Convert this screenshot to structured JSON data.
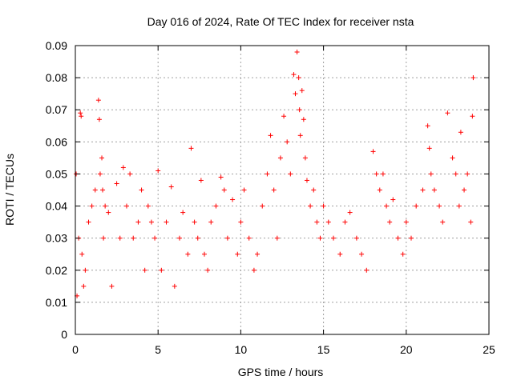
{
  "chart_data": {
    "type": "scatter",
    "title": "Day 016 of 2024, Rate Of TEC Index for receiver nsta",
    "xlabel": "GPS time / hours",
    "ylabel": "ROTI / TECUs",
    "xlim": [
      0,
      25
    ],
    "ylim": [
      0,
      0.09
    ],
    "x_ticks": [
      0,
      5,
      10,
      15,
      20,
      25
    ],
    "x_tick_labels": [
      "0",
      "5",
      "10",
      "15",
      "20",
      "25"
    ],
    "y_ticks": [
      0,
      0.01,
      0.02,
      0.03,
      0.04,
      0.05,
      0.06,
      0.07,
      0.08,
      0.09
    ],
    "y_tick_labels": [
      "0",
      "0.01",
      "0.02",
      "0.03",
      "0.04",
      "0.05",
      "0.06",
      "0.07",
      "0.08",
      "0.09"
    ],
    "grid": true,
    "marker": "+",
    "color": "#ff0000",
    "series": [
      {
        "name": "ROTI",
        "x": [
          0.05,
          0.1,
          0.2,
          0.3,
          0.35,
          0.4,
          0.5,
          0.6,
          0.8,
          1.0,
          1.2,
          1.4,
          1.45,
          1.5,
          1.6,
          1.65,
          1.7,
          1.8,
          2.0,
          2.2,
          2.5,
          2.7,
          2.9,
          3.1,
          3.3,
          3.5,
          3.8,
          4.0,
          4.2,
          4.4,
          4.6,
          4.8,
          5.0,
          5.2,
          5.5,
          5.8,
          6.0,
          6.3,
          6.5,
          6.8,
          7.0,
          7.2,
          7.4,
          7.6,
          7.8,
          8.0,
          8.2,
          8.5,
          8.8,
          9.0,
          9.2,
          9.5,
          9.8,
          10.0,
          10.2,
          10.5,
          10.8,
          11.0,
          11.3,
          11.6,
          11.8,
          12.0,
          12.2,
          12.4,
          12.6,
          12.8,
          13.0,
          13.2,
          13.3,
          13.4,
          13.5,
          13.55,
          13.6,
          13.7,
          13.8,
          13.9,
          14.0,
          14.2,
          14.4,
          14.6,
          14.8,
          15.0,
          15.3,
          15.6,
          16.0,
          16.3,
          16.6,
          17.0,
          17.3,
          17.6,
          18.0,
          18.2,
          18.4,
          18.6,
          18.8,
          19.0,
          19.2,
          19.5,
          19.8,
          20.0,
          20.3,
          20.6,
          21.0,
          21.3,
          21.4,
          21.5,
          21.7,
          22.0,
          22.2,
          22.5,
          22.8,
          23.0,
          23.2,
          23.3,
          23.5,
          23.7,
          23.9,
          24.0,
          24.05
        ],
        "y": [
          0.05,
          0.012,
          0.03,
          0.069,
          0.068,
          0.025,
          0.015,
          0.02,
          0.035,
          0.04,
          0.045,
          0.073,
          0.067,
          0.05,
          0.055,
          0.045,
          0.03,
          0.04,
          0.038,
          0.015,
          0.047,
          0.03,
          0.052,
          0.04,
          0.05,
          0.03,
          0.035,
          0.045,
          0.02,
          0.04,
          0.035,
          0.03,
          0.051,
          0.02,
          0.035,
          0.046,
          0.015,
          0.03,
          0.038,
          0.025,
          0.058,
          0.035,
          0.03,
          0.048,
          0.025,
          0.02,
          0.035,
          0.04,
          0.049,
          0.045,
          0.03,
          0.042,
          0.025,
          0.035,
          0.045,
          0.03,
          0.02,
          0.025,
          0.04,
          0.05,
          0.062,
          0.045,
          0.03,
          0.055,
          0.068,
          0.06,
          0.05,
          0.081,
          0.075,
          0.088,
          0.08,
          0.07,
          0.062,
          0.076,
          0.067,
          0.055,
          0.048,
          0.04,
          0.045,
          0.035,
          0.03,
          0.04,
          0.035,
          0.03,
          0.025,
          0.035,
          0.038,
          0.03,
          0.025,
          0.02,
          0.057,
          0.05,
          0.045,
          0.05,
          0.04,
          0.035,
          0.042,
          0.03,
          0.025,
          0.035,
          0.03,
          0.04,
          0.045,
          0.065,
          0.058,
          0.05,
          0.045,
          0.04,
          0.035,
          0.069,
          0.055,
          0.05,
          0.04,
          0.063,
          0.045,
          0.05,
          0.035,
          0.068,
          0.08
        ]
      }
    ]
  }
}
